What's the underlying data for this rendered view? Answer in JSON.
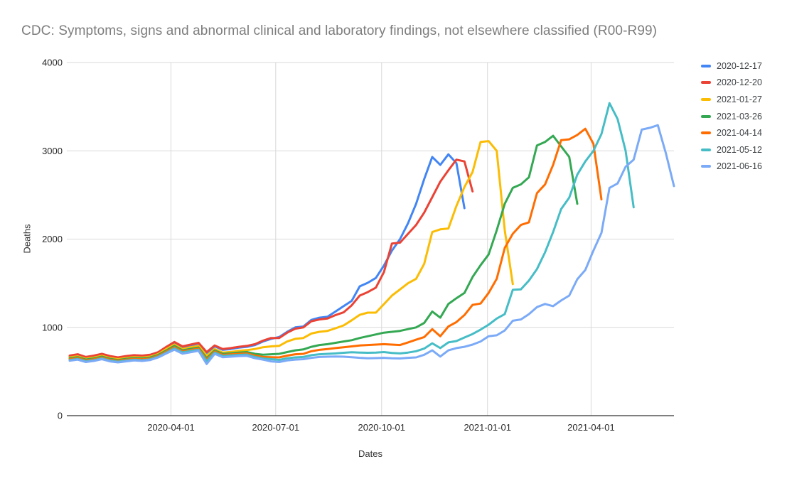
{
  "chart_data": {
    "type": "line",
    "title": "CDC: Symptoms, signs and abnormal clinical and laboratory findings, not elsewhere classified (R00-R99)",
    "xlabel": "Dates",
    "ylabel": "Deaths",
    "ylim": [
      0,
      4000
    ],
    "yticks": [
      0,
      1000,
      2000,
      3000,
      4000
    ],
    "xticks": [
      "2020-04-01",
      "2020-07-01",
      "2020-10-01",
      "2021-01-01",
      "2021-04-01"
    ],
    "grid": true,
    "legend_position": "right",
    "x_weekly_dates": [
      "2020-01-04",
      "2020-01-11",
      "2020-01-18",
      "2020-01-25",
      "2020-02-01",
      "2020-02-08",
      "2020-02-15",
      "2020-02-22",
      "2020-02-29",
      "2020-03-07",
      "2020-03-14",
      "2020-03-21",
      "2020-03-28",
      "2020-04-04",
      "2020-04-11",
      "2020-04-18",
      "2020-04-25",
      "2020-05-02",
      "2020-05-09",
      "2020-05-16",
      "2020-05-23",
      "2020-05-30",
      "2020-06-06",
      "2020-06-13",
      "2020-06-20",
      "2020-06-27",
      "2020-07-04",
      "2020-07-11",
      "2020-07-18",
      "2020-07-25",
      "2020-08-01",
      "2020-08-08",
      "2020-08-15",
      "2020-08-22",
      "2020-08-29",
      "2020-09-05",
      "2020-09-12",
      "2020-09-19",
      "2020-09-26",
      "2020-10-03",
      "2020-10-10",
      "2020-10-17",
      "2020-10-24",
      "2020-10-31",
      "2020-11-07",
      "2020-11-14",
      "2020-11-21",
      "2020-11-28",
      "2020-12-05",
      "2020-12-12",
      "2020-12-19",
      "2020-12-26",
      "2021-01-02",
      "2021-01-09",
      "2021-01-16",
      "2021-01-23",
      "2021-01-30",
      "2021-02-06",
      "2021-02-13",
      "2021-02-20",
      "2021-02-27",
      "2021-03-06",
      "2021-03-13",
      "2021-03-20",
      "2021-03-27",
      "2021-04-03",
      "2021-04-10",
      "2021-04-17",
      "2021-04-24",
      "2021-05-01",
      "2021-05-08",
      "2021-05-15",
      "2021-05-22",
      "2021-05-29",
      "2021-06-05",
      "2021-06-12"
    ],
    "series": [
      {
        "name": "2020-12-17",
        "color": "#4285F4",
        "values": [
          670,
          685,
          655,
          670,
          690,
          665,
          650,
          665,
          675,
          670,
          680,
          710,
          770,
          825,
          775,
          795,
          815,
          710,
          785,
          745,
          755,
          770,
          780,
          800,
          840,
          870,
          890,
          950,
          1000,
          1010,
          1085,
          1110,
          1120,
          1180,
          1240,
          1300,
          1465,
          1505,
          1560,
          1700,
          1870,
          2000,
          2180,
          2400,
          2680,
          2930,
          2840,
          2960,
          2860,
          2350
        ]
      },
      {
        "name": "2020-12-20",
        "color": "#EA4335",
        "values": [
          680,
          695,
          665,
          680,
          700,
          675,
          660,
          675,
          685,
          680,
          690,
          720,
          780,
          835,
          785,
          805,
          825,
          720,
          795,
          755,
          765,
          780,
          790,
          810,
          850,
          880,
          880,
          940,
          985,
          1000,
          1070,
          1090,
          1100,
          1140,
          1170,
          1250,
          1360,
          1400,
          1450,
          1625,
          1950,
          1960,
          2060,
          2160,
          2300,
          2475,
          2650,
          2780,
          2900,
          2880,
          2540
        ]
      },
      {
        "name": "2021-01-27",
        "color": "#FBBC04",
        "values": [
          660,
          672,
          645,
          658,
          678,
          653,
          640,
          653,
          663,
          658,
          668,
          698,
          755,
          805,
          755,
          775,
          790,
          680,
          755,
          715,
          722,
          735,
          742,
          755,
          775,
          785,
          790,
          840,
          870,
          880,
          930,
          950,
          960,
          990,
          1022,
          1080,
          1142,
          1167,
          1167,
          1263,
          1360,
          1430,
          1500,
          1550,
          1720,
          2080,
          2110,
          2120,
          2375,
          2590,
          2760,
          3100,
          3110,
          3000,
          2100,
          1490
        ]
      },
      {
        "name": "2021-03-26",
        "color": "#34A853",
        "values": [
          650,
          662,
          635,
          648,
          668,
          643,
          630,
          643,
          653,
          648,
          658,
          688,
          738,
          790,
          740,
          756,
          772,
          650,
          738,
          700,
          706,
          714,
          720,
          700,
          690,
          695,
          700,
          720,
          740,
          750,
          780,
          800,
          810,
          825,
          840,
          855,
          880,
          900,
          920,
          940,
          950,
          960,
          980,
          1000,
          1050,
          1180,
          1110,
          1265,
          1330,
          1390,
          1570,
          1705,
          1825,
          2100,
          2400,
          2580,
          2620,
          2700,
          3060,
          3100,
          3170,
          3050,
          2930,
          2400
        ]
      },
      {
        "name": "2021-04-14",
        "color": "#FF6D01",
        "values": [
          640,
          652,
          625,
          638,
          658,
          633,
          622,
          633,
          643,
          638,
          648,
          678,
          726,
          775,
          728,
          744,
          760,
          635,
          726,
          688,
          694,
          700,
          705,
          680,
          665,
          662,
          660,
          680,
          695,
          700,
          730,
          745,
          755,
          765,
          775,
          785,
          795,
          800,
          805,
          810,
          805,
          800,
          830,
          860,
          890,
          980,
          900,
          1010,
          1060,
          1140,
          1255,
          1270,
          1390,
          1550,
          1900,
          2060,
          2160,
          2190,
          2520,
          2620,
          2840,
          3120,
          3130,
          3180,
          3250,
          3080,
          2450
        ]
      },
      {
        "name": "2021-05-12",
        "color": "#46BDC6",
        "values": [
          630,
          642,
          616,
          628,
          648,
          624,
          612,
          624,
          634,
          628,
          638,
          668,
          714,
          762,
          716,
          732,
          748,
          618,
          714,
          676,
          682,
          688,
          692,
          665,
          648,
          640,
          632,
          650,
          660,
          665,
          685,
          695,
          700,
          705,
          712,
          718,
          715,
          712,
          714,
          720,
          710,
          705,
          715,
          730,
          760,
          820,
          765,
          830,
          845,
          885,
          925,
          975,
          1030,
          1100,
          1150,
          1425,
          1430,
          1530,
          1660,
          1850,
          2080,
          2340,
          2470,
          2730,
          2880,
          3000,
          3190,
          3540,
          3360,
          3000,
          2360
        ]
      },
      {
        "name": "2021-06-16",
        "color": "#7BAAF7",
        "values": [
          622,
          634,
          608,
          620,
          640,
          615,
          604,
          615,
          625,
          620,
          630,
          660,
          705,
          748,
          702,
          718,
          735,
          585,
          700,
          662,
          668,
          675,
          678,
          650,
          635,
          615,
          608,
          625,
          635,
          640,
          655,
          665,
          668,
          670,
          668,
          662,
          655,
          650,
          652,
          655,
          650,
          648,
          655,
          660,
          690,
          740,
          670,
          740,
          765,
          780,
          805,
          840,
          900,
          910,
          965,
          1075,
          1090,
          1150,
          1230,
          1265,
          1240,
          1305,
          1360,
          1545,
          1650,
          1870,
          2070,
          2580,
          2630,
          2820,
          2900,
          3240,
          3260,
          3290,
          2970,
          2600
        ]
      }
    ]
  }
}
